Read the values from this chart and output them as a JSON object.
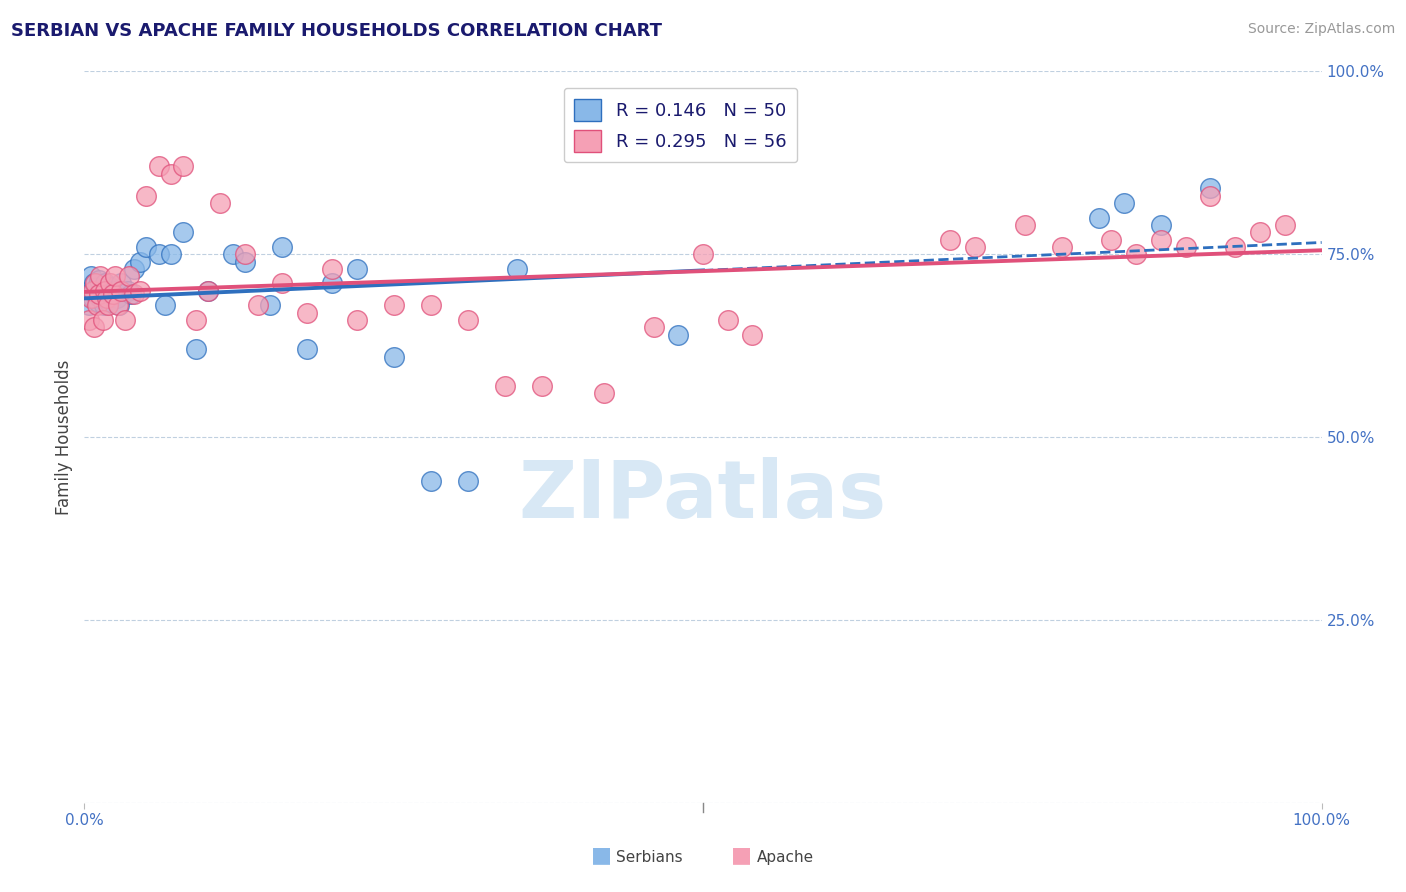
{
  "title": "SERBIAN VS APACHE FAMILY HOUSEHOLDS CORRELATION CHART",
  "source": "Source: ZipAtlas.com",
  "ylabel": "Family Households",
  "serbian_color": "#89b8e8",
  "apache_color": "#f5a0b5",
  "serbian_line_color": "#2e6fbe",
  "apache_line_color": "#e0507a",
  "background_color": "#ffffff",
  "grid_color": "#c0d0e0",
  "watermark_text": "ZIPatlas",
  "watermark_color": "#d8e8f5",
  "xlim": [
    0.0,
    1.0
  ],
  "ylim": [
    0.0,
    1.0
  ],
  "yticks": [
    0.0,
    0.25,
    0.5,
    0.75,
    1.0
  ],
  "ytick_labels": [
    "",
    "25.0%",
    "50.0%",
    "75.0%",
    "100.0%"
  ],
  "legend_serbian_R": 0.146,
  "legend_serbian_N": 50,
  "legend_apache_R": 0.295,
  "legend_apache_N": 56,
  "serbian_x": [
    0.004,
    0.005,
    0.006,
    0.007,
    0.008,
    0.009,
    0.01,
    0.011,
    0.012,
    0.013,
    0.014,
    0.015,
    0.016,
    0.017,
    0.018,
    0.019,
    0.02,
    0.021,
    0.022,
    0.024,
    0.026,
    0.028,
    0.03,
    0.035,
    0.038,
    0.04,
    0.045,
    0.05,
    0.06,
    0.065,
    0.07,
    0.08,
    0.09,
    0.1,
    0.12,
    0.13,
    0.15,
    0.16,
    0.18,
    0.2,
    0.22,
    0.25,
    0.28,
    0.31,
    0.35,
    0.48,
    0.82,
    0.84,
    0.87,
    0.91
  ],
  "serbian_y": [
    0.68,
    0.72,
    0.7,
    0.69,
    0.71,
    0.695,
    0.705,
    0.685,
    0.715,
    0.69,
    0.7,
    0.695,
    0.68,
    0.71,
    0.695,
    0.7,
    0.685,
    0.705,
    0.695,
    0.7,
    0.69,
    0.68,
    0.71,
    0.7,
    0.695,
    0.73,
    0.74,
    0.76,
    0.75,
    0.68,
    0.75,
    0.78,
    0.62,
    0.7,
    0.75,
    0.74,
    0.68,
    0.76,
    0.62,
    0.71,
    0.73,
    0.61,
    0.44,
    0.44,
    0.73,
    0.64,
    0.8,
    0.82,
    0.79,
    0.84
  ],
  "apache_x": [
    0.004,
    0.005,
    0.007,
    0.008,
    0.009,
    0.01,
    0.012,
    0.013,
    0.015,
    0.017,
    0.018,
    0.019,
    0.021,
    0.023,
    0.025,
    0.027,
    0.03,
    0.033,
    0.036,
    0.04,
    0.045,
    0.05,
    0.06,
    0.07,
    0.08,
    0.09,
    0.1,
    0.11,
    0.13,
    0.14,
    0.16,
    0.18,
    0.2,
    0.22,
    0.25,
    0.28,
    0.31,
    0.34,
    0.37,
    0.42,
    0.46,
    0.5,
    0.52,
    0.54,
    0.7,
    0.72,
    0.76,
    0.79,
    0.83,
    0.85,
    0.87,
    0.89,
    0.91,
    0.93,
    0.95,
    0.97
  ],
  "apache_y": [
    0.66,
    0.69,
    0.7,
    0.65,
    0.71,
    0.68,
    0.695,
    0.72,
    0.66,
    0.7,
    0.69,
    0.68,
    0.71,
    0.695,
    0.72,
    0.68,
    0.7,
    0.66,
    0.72,
    0.695,
    0.7,
    0.83,
    0.87,
    0.86,
    0.87,
    0.66,
    0.7,
    0.82,
    0.75,
    0.68,
    0.71,
    0.67,
    0.73,
    0.66,
    0.68,
    0.68,
    0.66,
    0.57,
    0.57,
    0.56,
    0.65,
    0.75,
    0.66,
    0.64,
    0.77,
    0.76,
    0.79,
    0.76,
    0.77,
    0.75,
    0.77,
    0.76,
    0.83,
    0.76,
    0.78,
    0.79
  ]
}
